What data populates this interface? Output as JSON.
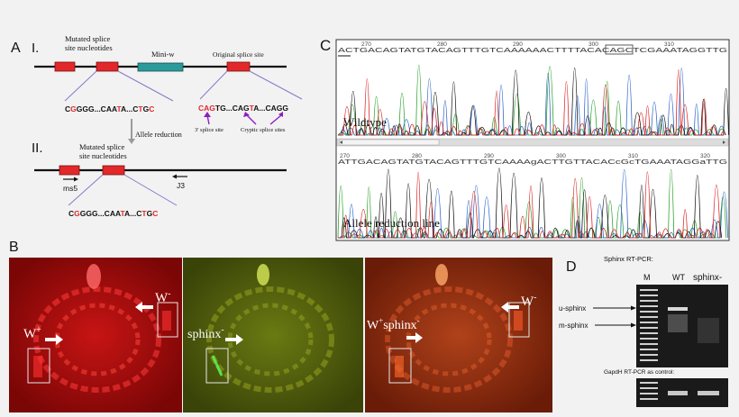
{
  "panels": {
    "a": {
      "letter": "A",
      "section1": "I.",
      "section2": "II.",
      "mutated_label_1": "Mutated splice",
      "mutated_label_2": "site nucleotides",
      "mini_w": "Mini-w",
      "original_splice_site": "Original splice site",
      "seq_left": [
        {
          "t": "C",
          "red": false
        },
        {
          "t": "G",
          "red": true
        },
        {
          "t": "GGG...CAA",
          "red": false
        },
        {
          "t": "T",
          "red": true
        },
        {
          "t": "A...C",
          "red": false
        },
        {
          "t": "T",
          "red": true
        },
        {
          "t": "G",
          "red": false
        },
        {
          "t": "C",
          "red": true
        }
      ],
      "seq_right": [
        {
          "t": "CAG",
          "red": true
        },
        {
          "t": "TG...CAG",
          "red": false
        },
        {
          "t": "T",
          "red": true
        },
        {
          "t": "A...CAGG",
          "red": false
        }
      ],
      "three_prime_site": "3' splice site",
      "cryptic_sites": "Cryptic splice sites",
      "allele_reduction": "Allele reduction",
      "primer_ms5": "ms5",
      "primer_j3": "J3",
      "seq_lower": [
        {
          "t": "C",
          "red": false
        },
        {
          "t": "G",
          "red": true
        },
        {
          "t": "GGG...CAA",
          "red": false
        },
        {
          "t": "T",
          "red": true
        },
        {
          "t": "A...C",
          "red": false
        },
        {
          "t": "T",
          "red": true
        },
        {
          "t": "G",
          "red": false
        },
        {
          "t": "C",
          "red": true
        }
      ]
    },
    "b": {
      "letter": "B",
      "w_plus": "W",
      "w_plus_sup": "+",
      "w_minus": "W",
      "w_minus_sup": "-",
      "sphinx": "sphinx",
      "sphinx_sup": "-"
    },
    "c": {
      "letter": "C",
      "top_label": "Wildtype",
      "bottom_label": "Allele reduction line",
      "top_positions": [
        "270",
        "280",
        "290",
        "300",
        "310"
      ],
      "bottom_positions": [
        "270",
        "280",
        "290",
        "300",
        "310",
        "320"
      ],
      "top_seq": "ACTGACAGTATGTACAGTTTGTCAAAAAACTTTTACACAGCTCGAAATAGGTTG",
      "bottom_seq": "ATTGACAGTATGTACAGTTTGTCAAAAgACTTGTTACACcGcTGAAATAGGaTTG"
    },
    "d": {
      "letter": "D",
      "title": "Sphinx RT-PCR:",
      "lane_m": "M",
      "lane_wt": "WT",
      "lane_sphinx": "sphinx-",
      "u_sphinx": "u-sphinx",
      "m_sphinx": "m-sphinx",
      "control": "GapdH RT-PCR as control:"
    }
  },
  "colors": {
    "exon_red": "#e2282a",
    "mini_w_teal": "#2a9a9a",
    "seq_red": "#e2282a",
    "lilac": "#8a78c8",
    "purple_arrow": "#8b1fbf",
    "trace_a": "#2aa02a",
    "trace_c": "#2a62c8",
    "trace_g": "#111111",
    "trace_t": "#d81e1e"
  }
}
